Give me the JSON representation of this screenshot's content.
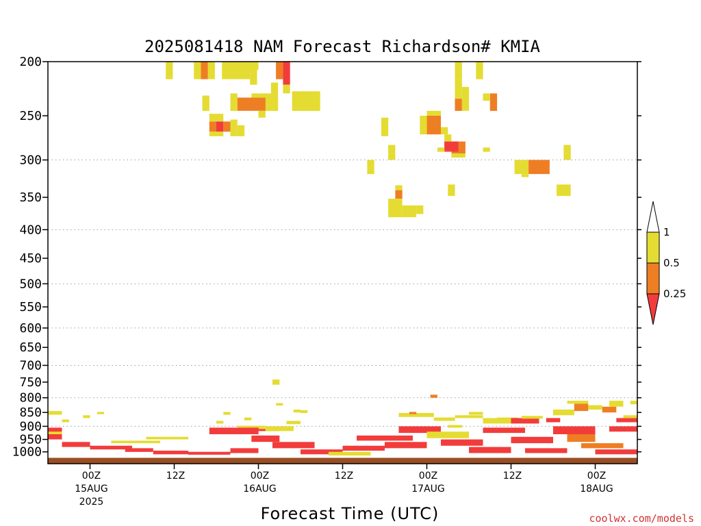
{
  "chart_data": {
    "type": "heatmap",
    "title": "2025081418 NAM Forecast Richardson# KMIA",
    "xlabel": "Forecast Time (UTC)",
    "ylabel": "",
    "y_axis": {
      "scale": "log",
      "inverted": true,
      "ticks": [
        200,
        250,
        300,
        350,
        400,
        450,
        500,
        550,
        600,
        650,
        700,
        750,
        800,
        850,
        900,
        950,
        1000
      ],
      "tick_labels": [
        "200",
        "250",
        "300",
        "350",
        "400",
        "450",
        "500",
        "550",
        "600",
        "650",
        "700",
        "750",
        "800",
        "850",
        "900",
        "950",
        "1000"
      ],
      "gridlines": [
        300,
        400,
        500,
        600,
        700,
        800,
        900
      ],
      "ylim": [
        1050,
        200
      ]
    },
    "x_axis": {
      "unit": "forecast hours",
      "xlim": [
        -6,
        78
      ],
      "ticks": [
        {
          "hour": 0,
          "lines": [
            "00Z",
            "15AUG",
            "2025"
          ]
        },
        {
          "hour": 12,
          "lines": [
            "12Z"
          ]
        },
        {
          "hour": 24,
          "lines": [
            "00Z",
            "16AUG"
          ]
        },
        {
          "hour": 36,
          "lines": [
            "12Z"
          ]
        },
        {
          "hour": 48,
          "lines": [
            "00Z",
            "17AUG"
          ]
        },
        {
          "hour": 60,
          "lines": [
            "12Z"
          ]
        },
        {
          "hour": 72,
          "lines": [
            "00Z",
            "18AUG"
          ]
        }
      ]
    },
    "legend": {
      "position": "right",
      "levels": [
        "1",
        "0.5",
        "0.25"
      ],
      "colors": {
        "lt_0.25": "#f23c3c",
        "0.25_0.5": "#ee7e24",
        "0.5_1": "#e4dc32",
        "gt_1": "#ffffff"
      }
    },
    "ground_color": "#9a4e24",
    "cells_format": "[hour_start, hour_end, p_top_hPa, p_bottom_hPa, category] category 1 = Ri 0.5-1, 2 = Ri 0.25-0.5, 3 = Ri < 0.25",
    "cells": [
      [
        10.8,
        11.8,
        200,
        215,
        1
      ],
      [
        14.8,
        15.8,
        200,
        215,
        1
      ],
      [
        15.8,
        16.8,
        200,
        215,
        2
      ],
      [
        16.8,
        17.8,
        200,
        215,
        1
      ],
      [
        18.8,
        22.8,
        200,
        215,
        1
      ],
      [
        22.8,
        23.8,
        205,
        220,
        1
      ],
      [
        22.0,
        24.0,
        200,
        207,
        1
      ],
      [
        26.5,
        27.5,
        200,
        215,
        2
      ],
      [
        27.5,
        28.5,
        200,
        220,
        3
      ],
      [
        27.5,
        28.5,
        220,
        228,
        1
      ],
      [
        25.8,
        26.8,
        218,
        228,
        1
      ],
      [
        24.8,
        26.8,
        228,
        245,
        1
      ],
      [
        28.8,
        32.8,
        226,
        245,
        1
      ],
      [
        16.0,
        17.0,
        230,
        245,
        1
      ],
      [
        20.0,
        21.0,
        228,
        245,
        1
      ],
      [
        21.0,
        25.0,
        232,
        245,
        2
      ],
      [
        24.0,
        25.0,
        245,
        252,
        1
      ],
      [
        23.0,
        25.0,
        228,
        232,
        1
      ],
      [
        17.0,
        19.0,
        248,
        256,
        1
      ],
      [
        17.0,
        18.0,
        256,
        267,
        2
      ],
      [
        18.0,
        19.0,
        256,
        267,
        3
      ],
      [
        19.0,
        20.0,
        256,
        267,
        2
      ],
      [
        17.0,
        19.0,
        267,
        272,
        1
      ],
      [
        20.0,
        21.0,
        254,
        272,
        1
      ],
      [
        21.0,
        22.0,
        260,
        272,
        1
      ],
      [
        52.0,
        53.0,
        200,
        215,
        1
      ],
      [
        55.0,
        56.0,
        200,
        215,
        1
      ],
      [
        52.0,
        53.0,
        215,
        233,
        1
      ],
      [
        53.0,
        54.0,
        222,
        245,
        1
      ],
      [
        52.0,
        53.0,
        233,
        245,
        2
      ],
      [
        57.0,
        58.0,
        228,
        245,
        2
      ],
      [
        56.0,
        57.0,
        228,
        235,
        1
      ],
      [
        41.5,
        42.5,
        252,
        272,
        1
      ],
      [
        48.0,
        50.0,
        245,
        250,
        1
      ],
      [
        48.0,
        50.0,
        250,
        270,
        2
      ],
      [
        47.0,
        48.0,
        250,
        270,
        1
      ],
      [
        50.0,
        51.0,
        262,
        270,
        1
      ],
      [
        50.5,
        51.5,
        270,
        278,
        1
      ],
      [
        51.5,
        53.5,
        278,
        292,
        2
      ],
      [
        51.5,
        53.5,
        292,
        297,
        1
      ],
      [
        50.5,
        52.5,
        278,
        288,
        3
      ],
      [
        50.5,
        52.5,
        288,
        290,
        3
      ],
      [
        49.5,
        50.5,
        285,
        290,
        1
      ],
      [
        56.0,
        57.0,
        285,
        290,
        1
      ],
      [
        42.5,
        43.5,
        282,
        300,
        1
      ],
      [
        39.5,
        40.5,
        300,
        318,
        1
      ],
      [
        60.5,
        62.5,
        300,
        318,
        1
      ],
      [
        62.5,
        65.5,
        300,
        318,
        2
      ],
      [
        61.5,
        62.5,
        318,
        322,
        1
      ],
      [
        67.5,
        68.5,
        282,
        300,
        1
      ],
      [
        66.5,
        68.5,
        332,
        348,
        1
      ],
      [
        51.0,
        52.0,
        332,
        348,
        1
      ],
      [
        43.5,
        44.5,
        333,
        340,
        1
      ],
      [
        43.5,
        44.5,
        340,
        352,
        2
      ],
      [
        42.5,
        44.5,
        352,
        380,
        1
      ],
      [
        44.5,
        46.5,
        362,
        380,
        1
      ],
      [
        46.5,
        47.5,
        362,
        375,
        1
      ],
      [
        26.0,
        27.0,
        742,
        758,
        1
      ],
      [
        26.5,
        27.5,
        818,
        826,
        1
      ],
      [
        29.0,
        30.0,
        840,
        850,
        1
      ],
      [
        30.0,
        31.0,
        842,
        852,
        1
      ],
      [
        -6.0,
        -4.0,
        845,
        858,
        1
      ],
      [
        -4.0,
        -3.0,
        875,
        885,
        1
      ],
      [
        -1.0,
        0.0,
        860,
        870,
        1
      ],
      [
        1.0,
        2.0,
        848,
        856,
        1
      ],
      [
        19.0,
        20.0,
        848,
        858,
        1
      ],
      [
        18.0,
        19.0,
        880,
        890,
        1
      ],
      [
        22.0,
        23.0,
        868,
        878,
        1
      ],
      [
        21.0,
        25.0,
        898,
        905,
        1
      ],
      [
        24.0,
        27.0,
        910,
        918,
        3
      ],
      [
        23.0,
        25.0,
        905,
        910,
        1
      ],
      [
        25.0,
        29.0,
        900,
        918,
        1
      ],
      [
        28.0,
        30.0,
        880,
        892,
        1
      ],
      [
        44.0,
        49.0,
        852,
        866,
        1
      ],
      [
        45.5,
        46.5,
        848,
        856,
        2
      ],
      [
        49.0,
        52.0,
        868,
        880,
        1
      ],
      [
        52.0,
        56.0,
        860,
        870,
        1
      ],
      [
        54.0,
        56.0,
        848,
        858,
        1
      ],
      [
        56.0,
        60.0,
        870,
        890,
        1
      ],
      [
        58.0,
        61.0,
        868,
        880,
        1
      ],
      [
        60.0,
        64.0,
        870,
        890,
        3
      ],
      [
        61.5,
        64.5,
        862,
        872,
        1
      ],
      [
        65.0,
        67.0,
        870,
        885,
        3
      ],
      [
        66.0,
        69.0,
        840,
        860,
        1
      ],
      [
        68.0,
        71.0,
        810,
        820,
        1
      ],
      [
        69.0,
        71.0,
        820,
        845,
        2
      ],
      [
        71.0,
        73.0,
        825,
        840,
        1
      ],
      [
        73.0,
        75.0,
        830,
        850,
        2
      ],
      [
        74.0,
        76.0,
        810,
        830,
        1
      ],
      [
        77.0,
        78.0,
        810,
        822,
        1
      ],
      [
        75.0,
        78.0,
        870,
        885,
        3
      ],
      [
        76.0,
        78.0,
        860,
        870,
        1
      ],
      [
        48.5,
        49.5,
        790,
        800,
        2
      ],
      [
        51.0,
        53.0,
        895,
        905,
        1
      ],
      [
        -6.0,
        -4.0,
        905,
        950,
        3
      ],
      [
        -6.0,
        -4.0,
        920,
        930,
        1
      ],
      [
        -4.0,
        0.0,
        960,
        980,
        3
      ],
      [
        0.0,
        6.0,
        975,
        990,
        3
      ],
      [
        3.0,
        10.0,
        955,
        965,
        1
      ],
      [
        8.0,
        14.0,
        940,
        950,
        1
      ],
      [
        5.0,
        9.0,
        985,
        1000,
        3
      ],
      [
        9.0,
        14.0,
        995,
        1010,
        3
      ],
      [
        14.0,
        20.0,
        1000,
        1012,
        3
      ],
      [
        20.0,
        24.0,
        985,
        1005,
        3
      ],
      [
        17.0,
        24.0,
        905,
        930,
        3
      ],
      [
        23.0,
        27.0,
        935,
        960,
        3
      ],
      [
        26.0,
        32.0,
        960,
        985,
        3
      ],
      [
        30.0,
        36.0,
        990,
        1010,
        3
      ],
      [
        34.0,
        40.0,
        1000,
        1015,
        1
      ],
      [
        36.0,
        42.0,
        975,
        995,
        3
      ],
      [
        38.0,
        46.0,
        935,
        955,
        3
      ],
      [
        42.0,
        48.0,
        960,
        985,
        3
      ],
      [
        44.0,
        50.0,
        900,
        925,
        3
      ],
      [
        48.0,
        54.0,
        920,
        945,
        1
      ],
      [
        50.0,
        56.0,
        950,
        975,
        3
      ],
      [
        54.0,
        60.0,
        980,
        1005,
        3
      ],
      [
        56.0,
        62.0,
        905,
        925,
        3
      ],
      [
        60.0,
        66.0,
        940,
        965,
        3
      ],
      [
        62.0,
        68.0,
        985,
        1005,
        3
      ],
      [
        66.0,
        72.0,
        900,
        930,
        3
      ],
      [
        68.0,
        72.0,
        930,
        960,
        2
      ],
      [
        70.0,
        76.0,
        965,
        985,
        2
      ],
      [
        72.0,
        78.0,
        990,
        1010,
        3
      ],
      [
        74.0,
        78.0,
        900,
        920,
        3
      ]
    ]
  },
  "credit": "coolwx.com/models"
}
